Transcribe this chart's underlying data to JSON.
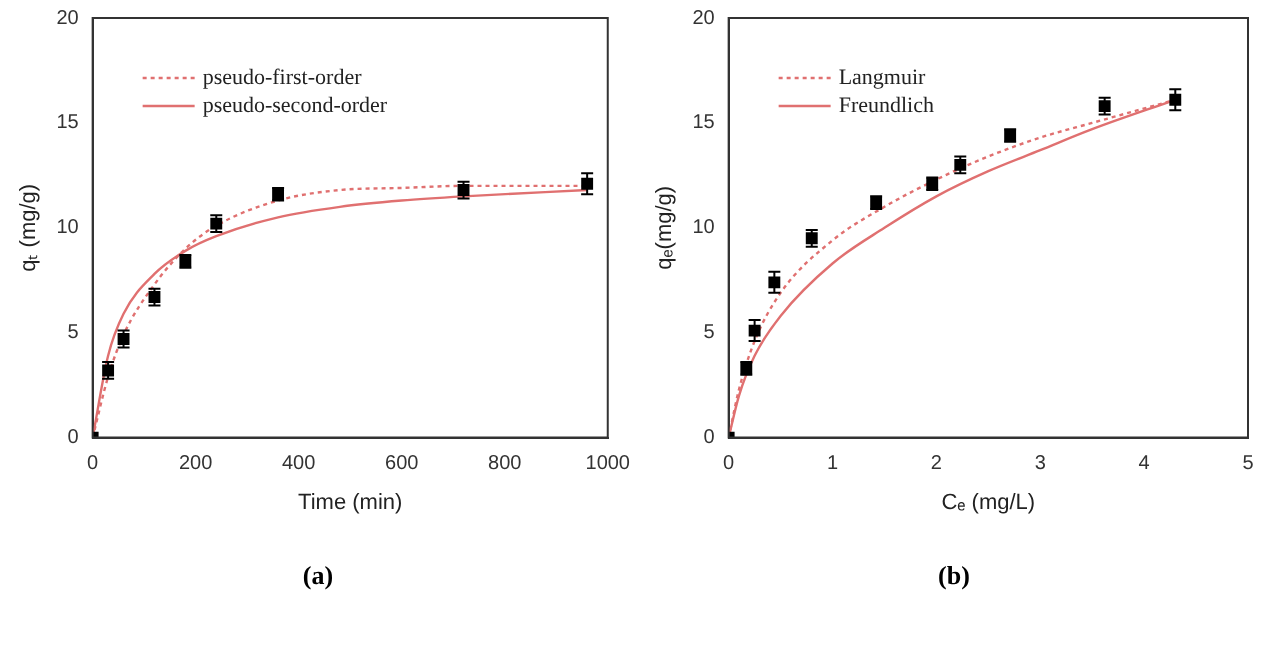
{
  "chart_data": [
    {
      "type": "scatter",
      "xlabel": "Time (min)",
      "ylabel": "qₜ (mg/g)",
      "xlim": [
        0,
        1000
      ],
      "xticks": [
        0,
        200,
        400,
        600,
        800,
        1000
      ],
      "ylim": [
        0,
        20
      ],
      "yticks": [
        0,
        5,
        10,
        15,
        20
      ],
      "grid": false,
      "legend": "top left",
      "annotations": [
        "(a)"
      ],
      "series": [
        {
          "color": "#000000",
          "marker": "square",
          "x": [
            0,
            30,
            60,
            120,
            180,
            240,
            360,
            720,
            960
          ],
          "values": [
            0,
            3.2,
            4.7,
            6.7,
            8.4,
            10.2,
            11.6,
            11.8,
            12.1
          ],
          "errors": [
            null,
            0.4,
            0.4,
            0.4,
            0.3,
            0.4,
            0.3,
            0.4,
            0.5
          ]
        },
        {
          "type": "line",
          "name": "pseudo-first-order",
          "color": "#e07070",
          "line_style": "dotted",
          "marker": "none",
          "x": [
            0,
            30,
            60,
            120,
            180,
            240,
            360,
            480,
            600,
            720,
            960
          ],
          "values": [
            0,
            2.9,
            4.9,
            7.3,
            9.0,
            10.1,
            11.3,
            11.8,
            11.9,
            12.0,
            12.0
          ]
        },
        {
          "type": "line",
          "name": "pseudo-second-order",
          "color": "#e07070",
          "line_style": "solid",
          "marker": "none",
          "x": [
            0,
            30,
            60,
            120,
            180,
            240,
            360,
            480,
            600,
            720,
            960
          ],
          "values": [
            0,
            3.9,
            5.9,
            7.8,
            8.9,
            9.6,
            10.5,
            11.0,
            11.3,
            11.5,
            11.8
          ]
        }
      ]
    },
    {
      "type": "scatter",
      "xlabel": "Cₑ (mg/L)",
      "ylabel": "qₑ(mg/g)",
      "xlim": [
        0,
        5
      ],
      "xticks": [
        0,
        1,
        2,
        3,
        4,
        5
      ],
      "ylim": [
        0,
        20
      ],
      "yticks": [
        0,
        5,
        10,
        15,
        20
      ],
      "grid": false,
      "legend": "top left",
      "annotations": [
        "(b)"
      ],
      "series": [
        {
          "color": "#000000",
          "marker": "square",
          "x": [
            0,
            0.17,
            0.25,
            0.44,
            0.8,
            1.42,
            1.96,
            2.23,
            2.71,
            3.62,
            4.3
          ],
          "values": [
            0,
            3.3,
            5.1,
            7.4,
            9.5,
            11.2,
            12.1,
            13.0,
            14.4,
            15.8,
            16.1
          ],
          "errors": [
            null,
            0.3,
            0.5,
            0.5,
            0.4,
            0.3,
            0.3,
            0.4,
            0.3,
            0.4,
            0.5
          ]
        },
        {
          "type": "line",
          "name": "Langmuir",
          "color": "#e07070",
          "line_style": "dotted",
          "marker": "none",
          "x": [
            0,
            0.1,
            0.25,
            0.5,
            1,
            1.5,
            2,
            2.5,
            3,
            3.5,
            4.3
          ],
          "values": [
            0,
            2.3,
            4.6,
            6.9,
            9.4,
            11.0,
            12.3,
            13.4,
            14.3,
            15.0,
            16.1
          ]
        },
        {
          "type": "line",
          "name": "Freundlich",
          "color": "#e07070",
          "line_style": "solid",
          "marker": "none",
          "x": [
            0,
            0.1,
            0.25,
            0.5,
            1,
            1.5,
            2,
            2.5,
            3,
            3.5,
            4.3
          ],
          "values": [
            0,
            2.0,
            3.9,
            5.8,
            8.3,
            10.0,
            11.5,
            12.7,
            13.7,
            14.7,
            16.1
          ]
        }
      ]
    }
  ]
}
